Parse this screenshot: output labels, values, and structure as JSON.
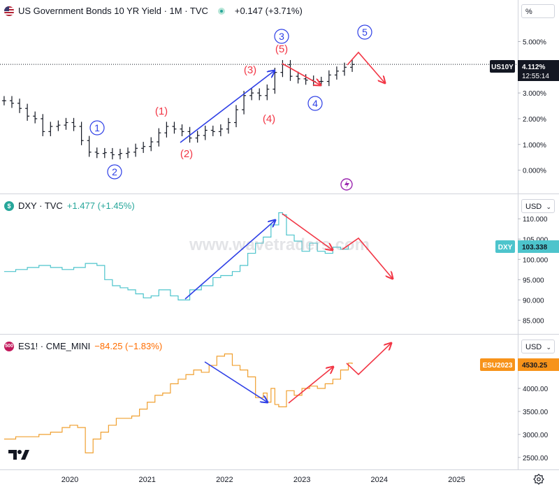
{
  "panes": [
    {
      "id": "yield",
      "symbol_icon_text": "",
      "symbol_icon_color": "#b22234",
      "symbol": "US Government Bonds 10 YR Yield · 1M · TVC",
      "change": "+0.147 (+3.71%)",
      "change_color": "#131722",
      "unit_button": "%",
      "price_tag": "US10Y",
      "price_value": "4.112%",
      "countdown": "12:55:14",
      "tick_labels": [
        "5.000%",
        "4.000%",
        "3.000%",
        "2.000%",
        "1.000%",
        "0.000%"
      ]
    },
    {
      "id": "dxy",
      "symbol_icon_text": "$",
      "symbol_icon_color": "#26a69a",
      "symbol": "DXY · TVC",
      "change": "+1.477 (+1.45%)",
      "change_color": "#26a69a",
      "unit_button": "USD",
      "price_tag": "DXY",
      "price_value": "103.338",
      "tick_labels": [
        "110.000",
        "105.000",
        "100.000",
        "95.000",
        "90.000",
        "85.000"
      ]
    },
    {
      "id": "es",
      "symbol_icon_text": "500",
      "symbol_icon_color": "#c2185b",
      "symbol": "ES1! · CME_MINI",
      "change": "−84.25 (−1.83%)",
      "change_color": "#ff6d00",
      "unit_button": "USD",
      "price_tag": "ESU2023",
      "price_value": "4530.25",
      "tick_labels": [
        "4000.00",
        "3500.00",
        "3000.00",
        "2500.00"
      ]
    }
  ],
  "time_axis": [
    "2020",
    "2021",
    "2022",
    "2023",
    "2024",
    "2025"
  ],
  "watermark": "www.wavetraders.com",
  "wave_labels_blue": [
    "1",
    "2",
    "3",
    "4",
    "5"
  ],
  "wave_labels_red": [
    "(1)",
    "(2)",
    "(3)",
    "(4)",
    "(5)"
  ],
  "colors": {
    "yield_bars": "#131722",
    "dxy_line": "#4dc4cc",
    "es_line": "#f0a030",
    "blue_arrow": "#2e3fe6",
    "red_arrow": "#f23645",
    "price_tag_black": "#131722",
    "price_tag_teal": "#4dc4cc",
    "price_tag_orange": "#f7931a"
  },
  "chart_data": [
    {
      "type": "line",
      "series": [
        {
          "values": [
            [
              2019.15,
              2.7
            ],
            [
              2019.25,
              2.6
            ],
            [
              2019.35,
              2.4
            ],
            [
              2019.45,
              2.1
            ],
            [
              2019.55,
              2.0
            ],
            [
              2019.65,
              1.5
            ],
            [
              2019.75,
              1.7
            ],
            [
              2019.85,
              1.75
            ],
            [
              2019.95,
              1.85
            ],
            [
              2020.05,
              1.7
            ],
            [
              2020.15,
              1.15
            ],
            [
              2020.25,
              0.7
            ],
            [
              2020.35,
              0.65
            ],
            [
              2020.45,
              0.68
            ],
            [
              2020.55,
              0.6
            ],
            [
              2020.65,
              0.65
            ],
            [
              2020.75,
              0.7
            ],
            [
              2020.85,
              0.85
            ],
            [
              2020.95,
              0.92
            ],
            [
              2021.05,
              1.1
            ],
            [
              2021.15,
              1.45
            ],
            [
              2021.25,
              1.7
            ],
            [
              2021.35,
              1.6
            ],
            [
              2021.45,
              1.5
            ],
            [
              2021.55,
              1.25
            ],
            [
              2021.65,
              1.35
            ],
            [
              2021.75,
              1.55
            ],
            [
              2021.85,
              1.5
            ],
            [
              2021.95,
              1.6
            ],
            [
              2022.05,
              1.85
            ],
            [
              2022.15,
              2.35
            ],
            [
              2022.25,
              2.9
            ],
            [
              2022.35,
              3.0
            ],
            [
              2022.45,
              2.9
            ],
            [
              2022.55,
              3.15
            ],
            [
              2022.65,
              3.8
            ],
            [
              2022.75,
              4.1
            ],
            [
              2022.85,
              3.65
            ],
            [
              2022.95,
              3.55
            ],
            [
              2023.05,
              3.5
            ],
            [
              2023.15,
              3.45
            ],
            [
              2023.25,
              3.45
            ],
            [
              2023.35,
              3.7
            ],
            [
              2023.45,
              3.85
            ],
            [
              2023.55,
              4.0
            ],
            [
              2023.65,
              4.11
            ]
          ]
        }
      ],
      "ylim": [
        -0.5,
        5.8
      ]
    },
    {
      "type": "line",
      "series": [
        {
          "values": [
            [
              2019.15,
              97.0
            ],
            [
              2019.3,
              97.5
            ],
            [
              2019.45,
              98.0
            ],
            [
              2019.6,
              98.5
            ],
            [
              2019.75,
              98.0
            ],
            [
              2019.9,
              97.5
            ],
            [
              2020.05,
              98.0
            ],
            [
              2020.2,
              99.0
            ],
            [
              2020.35,
              98.5
            ],
            [
              2020.45,
              95.0
            ],
            [
              2020.55,
              93.5
            ],
            [
              2020.65,
              93.0
            ],
            [
              2020.75,
              92.5
            ],
            [
              2020.85,
              91.5
            ],
            [
              2020.95,
              90.5
            ],
            [
              2021.05,
              91.0
            ],
            [
              2021.15,
              92.5
            ],
            [
              2021.3,
              91.0
            ],
            [
              2021.4,
              90.0
            ],
            [
              2021.55,
              92.5
            ],
            [
              2021.7,
              93.5
            ],
            [
              2021.85,
              95.5
            ],
            [
              2021.95,
              96.0
            ],
            [
              2022.1,
              97.0
            ],
            [
              2022.2,
              98.5
            ],
            [
              2022.3,
              101.5
            ],
            [
              2022.4,
              104.0
            ],
            [
              2022.5,
              105.5
            ],
            [
              2022.6,
              108.5
            ],
            [
              2022.7,
              111.5
            ],
            [
              2022.75,
              111.0
            ],
            [
              2022.8,
              106.0
            ],
            [
              2022.9,
              104.5
            ],
            [
              2023.0,
              102.0
            ],
            [
              2023.1,
              104.0
            ],
            [
              2023.2,
              102.0
            ],
            [
              2023.3,
              101.5
            ],
            [
              2023.4,
              103.0
            ],
            [
              2023.5,
              102.5
            ],
            [
              2023.6,
              103.34
            ]
          ]
        }
      ],
      "ylim": [
        83,
        114
      ]
    },
    {
      "type": "line",
      "series": [
        {
          "values": [
            [
              2019.15,
              2900
            ],
            [
              2019.3,
              2950
            ],
            [
              2019.45,
              2950
            ],
            [
              2019.6,
              3000
            ],
            [
              2019.75,
              3050
            ],
            [
              2019.9,
              3150
            ],
            [
              2020.0,
              3200
            ],
            [
              2020.1,
              3150
            ],
            [
              2020.2,
              2600
            ],
            [
              2020.3,
              2900
            ],
            [
              2020.4,
              3050
            ],
            [
              2020.5,
              3200
            ],
            [
              2020.6,
              3350
            ],
            [
              2020.7,
              3350
            ],
            [
              2020.8,
              3400
            ],
            [
              2020.9,
              3550
            ],
            [
              2021.0,
              3700
            ],
            [
              2021.1,
              3850
            ],
            [
              2021.2,
              3900
            ],
            [
              2021.3,
              4100
            ],
            [
              2021.4,
              4200
            ],
            [
              2021.5,
              4300
            ],
            [
              2021.6,
              4400
            ],
            [
              2021.7,
              4350
            ],
            [
              2021.8,
              4500
            ],
            [
              2021.9,
              4700
            ],
            [
              2022.0,
              4750
            ],
            [
              2022.1,
              4500
            ],
            [
              2022.2,
              4400
            ],
            [
              2022.3,
              4250
            ],
            [
              2022.4,
              3800
            ],
            [
              2022.5,
              3900
            ],
            [
              2022.55,
              3700
            ],
            [
              2022.6,
              4000
            ],
            [
              2022.65,
              3650
            ],
            [
              2022.7,
              3600
            ],
            [
              2022.8,
              3950
            ],
            [
              2022.9,
              3850
            ],
            [
              2023.0,
              4000
            ],
            [
              2023.1,
              4050
            ],
            [
              2023.2,
              4000
            ],
            [
              2023.3,
              4100
            ],
            [
              2023.4,
              4200
            ],
            [
              2023.5,
              4400
            ],
            [
              2023.6,
              4550
            ],
            [
              2023.65,
              4530
            ]
          ]
        }
      ],
      "ylim": [
        2300,
        4850
      ]
    }
  ]
}
